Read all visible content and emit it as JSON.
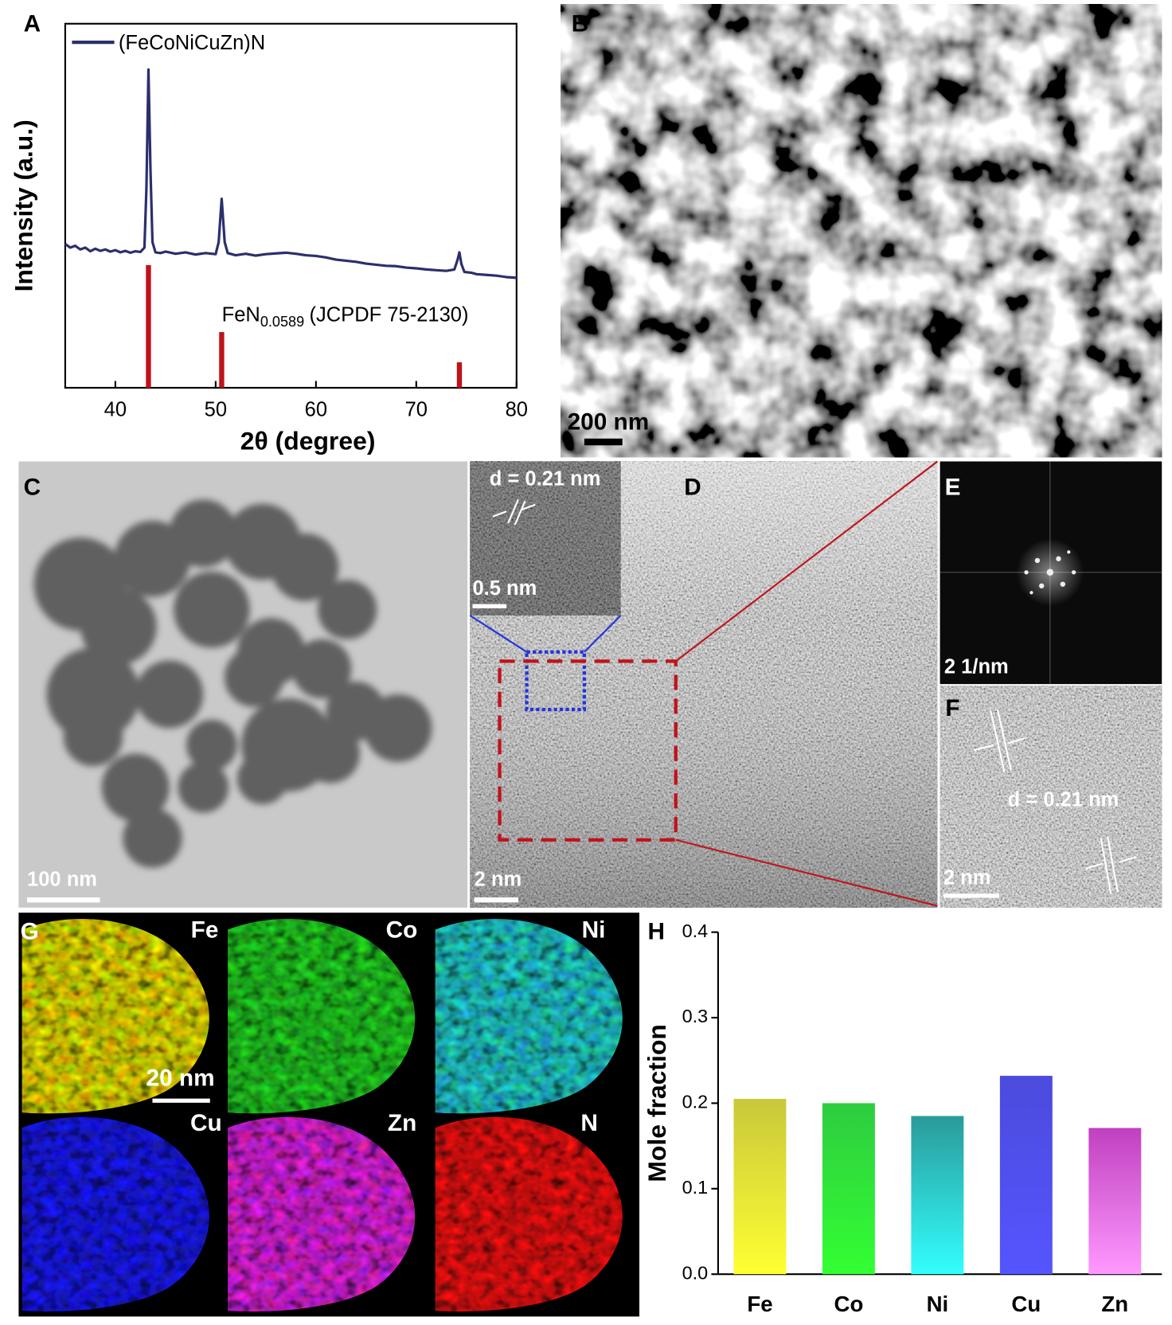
{
  "chart_data": [
    {
      "type": "line",
      "xlabel": "2θ (degree)",
      "ylabel": "Intensity (a.u.)",
      "xlim": [
        35,
        80
      ],
      "xticks": [
        40,
        50,
        60,
        70,
        80
      ],
      "ylim": [
        0,
        100
      ],
      "series": [
        {
          "name": "(FeCoNiCuZn)N",
          "color": "#2b2f6b",
          "x": [
            35,
            35.5,
            36,
            36.5,
            37,
            37.5,
            38,
            38.5,
            39,
            39.5,
            40,
            40.5,
            41,
            41.5,
            42,
            42.5,
            42.9,
            43.1,
            43.3,
            43.5,
            43.7,
            44,
            44.5,
            45,
            46,
            47,
            48,
            49,
            50,
            50.3,
            50.6,
            50.9,
            51.2,
            52,
            53,
            54,
            55,
            56,
            57,
            58,
            59,
            60,
            61,
            62,
            63,
            64,
            65,
            66,
            67,
            68,
            69,
            70,
            71,
            72,
            73,
            73.8,
            74.1,
            74.3,
            74.5,
            74.8,
            75.5,
            76,
            77,
            78,
            79,
            80
          ],
          "values": [
            39.5,
            38.5,
            39,
            38,
            38.5,
            37.5,
            38.2,
            37.6,
            38,
            37.4,
            37.8,
            37.2,
            37.6,
            37.1,
            37.5,
            37.3,
            38.5,
            55,
            87.4,
            60,
            40,
            37.2,
            37,
            37.4,
            36.8,
            37.2,
            36.6,
            37,
            36.7,
            40,
            51.9,
            40,
            37,
            36.4,
            36.8,
            36.3,
            36.7,
            36.9,
            37.1,
            36.8,
            36.4,
            36.2,
            35.8,
            35.2,
            34.9,
            34.6,
            34.1,
            33.8,
            33.5,
            33.4,
            33,
            32.8,
            32.5,
            32.3,
            32.1,
            32.5,
            35,
            37.2,
            34,
            31.8,
            31.6,
            31.2,
            31,
            30.8,
            30.4,
            30.2
          ]
        }
      ],
      "reference": {
        "name_parts": [
          "FeN",
          "0.0589",
          "(JCPDF 75-2130)"
        ],
        "color": "#c0121b",
        "x": [
          43.3,
          50.6,
          74.3
        ],
        "values": [
          33.7,
          15.3,
          7
        ]
      }
    },
    {
      "type": "bar",
      "ylabel": "Mole fraction",
      "categories": [
        "Fe",
        "Co",
        "Ni",
        "Cu",
        "Zn"
      ],
      "values": [
        0.205,
        0.2,
        0.185,
        0.232,
        0.171
      ],
      "colors": [
        "#c8c83a",
        "#2ecc40",
        "#2a9a9a",
        "#4b4bdd",
        "#c040c0"
      ],
      "colors_bottom": [
        "#ffff33",
        "#33ff33",
        "#33ffff",
        "#5555ff",
        "#ff99ff"
      ],
      "ylim": [
        0,
        0.4
      ],
      "yticks": [
        {
          "value": 0,
          "label": "0.0"
        },
        0.1,
        0.2,
        0.3,
        0.4
      ]
    }
  ],
  "panel_labels": [
    "A",
    "B",
    "C",
    "D",
    "E",
    "F",
    "G",
    "H"
  ],
  "images": {
    "B": {
      "scale_bar": "200 nm"
    },
    "C": {
      "scale_bar": "100 nm"
    },
    "D": {
      "scale_bar": "2 nm",
      "inset_spacing": "d = 0.21 nm",
      "inset_scale_bar": "0.5 nm"
    },
    "E": {
      "scale_bar": "2 1/nm"
    },
    "F": {
      "spacing": "d = 0.21 nm",
      "scale_bar": "2 nm"
    },
    "G": {
      "elements": [
        "Fe",
        "Co",
        "Ni",
        "Cu",
        "Zn",
        "N"
      ],
      "scale_bar": "20 nm"
    }
  }
}
